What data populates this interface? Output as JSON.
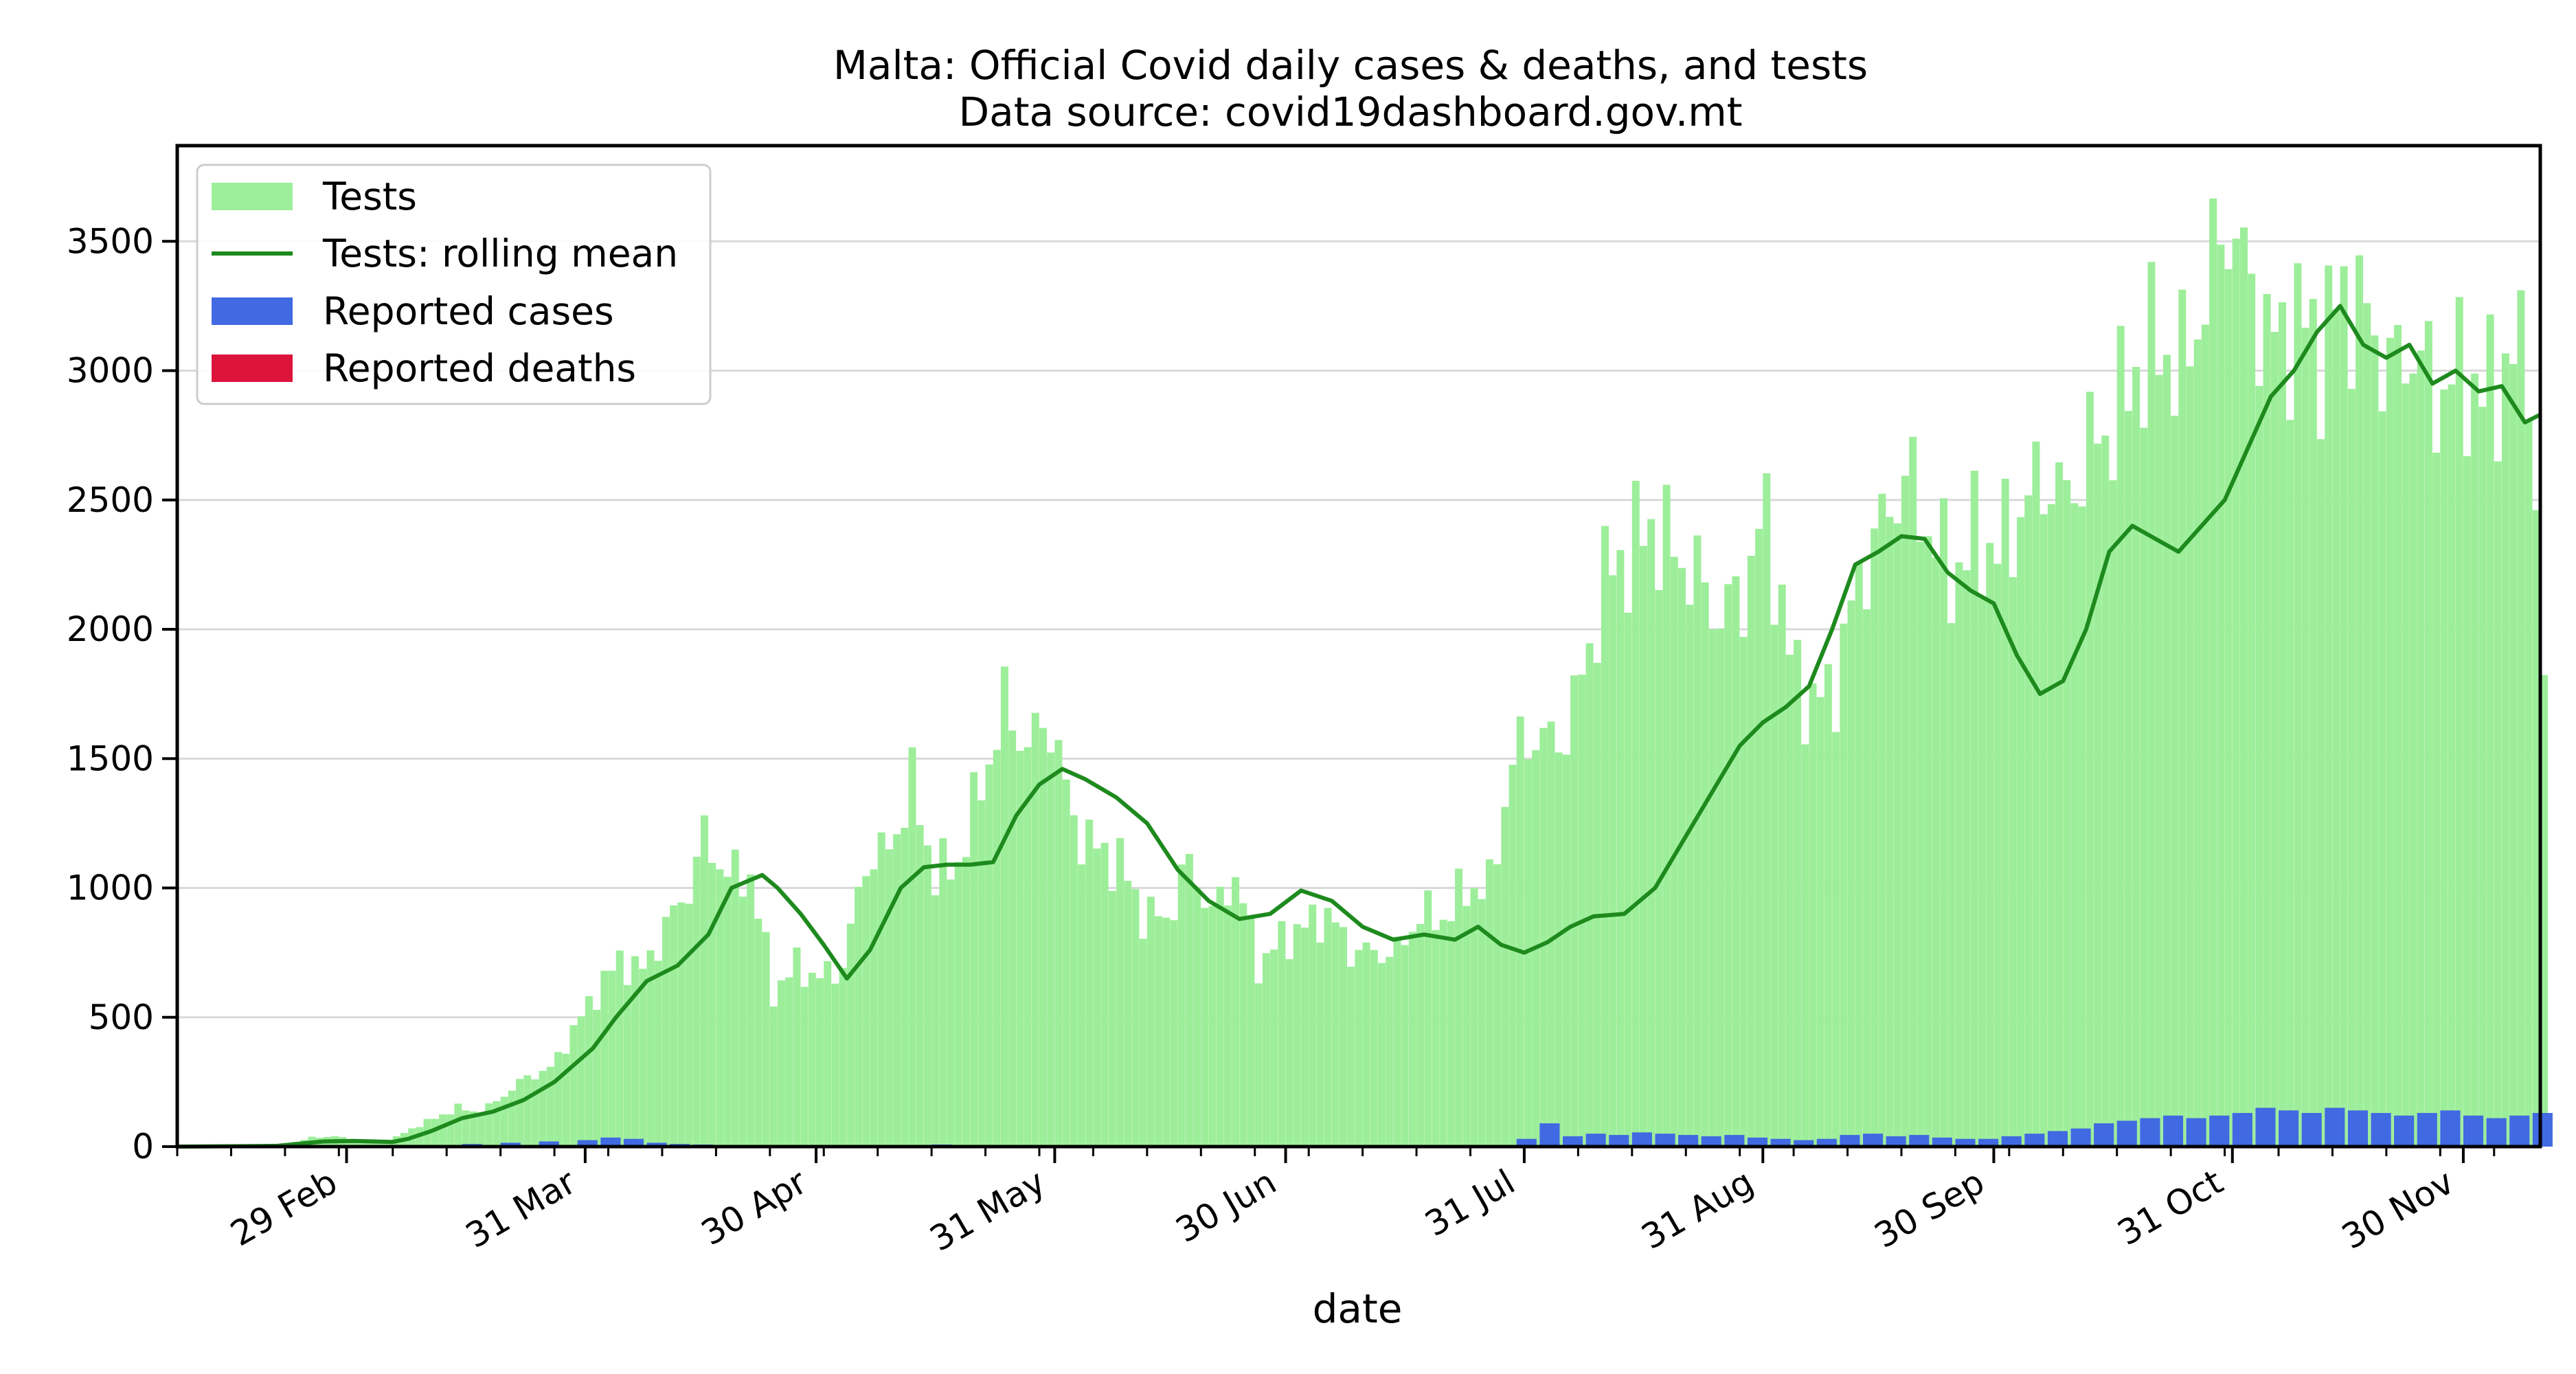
{
  "chart_data": {
    "type": "bar",
    "title": "Malta: Official Covid daily cases & deaths, and tests",
    "subtitle": "Data source: covid19dashboard.gov.mt",
    "xlabel": "date",
    "ylabel": "",
    "x_range": [
      "2020-02-07",
      "2020-12-10"
    ],
    "ylim": [
      0,
      3870
    ],
    "yticks": [
      0,
      500,
      1000,
      1500,
      2000,
      2500,
      3000,
      3500
    ],
    "xticks": [
      {
        "date": "2020-02-29",
        "label": "29 Feb"
      },
      {
        "date": "2020-03-31",
        "label": "31 Mar"
      },
      {
        "date": "2020-04-30",
        "label": "30 Apr"
      },
      {
        "date": "2020-05-31",
        "label": "31 May"
      },
      {
        "date": "2020-06-30",
        "label": "30 Jun"
      },
      {
        "date": "2020-07-31",
        "label": "31 Jul"
      },
      {
        "date": "2020-08-31",
        "label": "31 Aug"
      },
      {
        "date": "2020-09-30",
        "label": "30 Sep"
      },
      {
        "date": "2020-10-31",
        "label": "31 Oct"
      },
      {
        "date": "2020-11-30",
        "label": "30 Nov"
      }
    ],
    "grid": "horizontal",
    "legend_position": "top-left",
    "legend": [
      {
        "label": "Tests",
        "kind": "bar",
        "color": "#9DEE9A"
      },
      {
        "label": "Tests: rolling mean",
        "kind": "line",
        "color": "#1E8A1E"
      },
      {
        "label": "Reported cases",
        "kind": "bar",
        "color": "#4169E1"
      },
      {
        "label": "Reported deaths",
        "kind": "bar",
        "color": "#DC143C"
      }
    ],
    "series": [
      {
        "name": "Tests",
        "kind": "bar",
        "color": "#9DEE9A",
        "values": [
          [
            "2020-02-07",
            5
          ],
          [
            "2020-02-14",
            5
          ],
          [
            "2020-02-21",
            10
          ],
          [
            "2020-02-24",
            35
          ],
          [
            "2020-02-27",
            40
          ],
          [
            "2020-03-01",
            25
          ],
          [
            "2020-03-05",
            20
          ],
          [
            "2020-03-08",
            70
          ],
          [
            "2020-03-11",
            110
          ],
          [
            "2020-03-14",
            150
          ],
          [
            "2020-03-17",
            130
          ],
          [
            "2020-03-20",
            200
          ],
          [
            "2020-03-23",
            270
          ],
          [
            "2020-03-26",
            300
          ],
          [
            "2020-03-29",
            450
          ],
          [
            "2020-04-01",
            600
          ],
          [
            "2020-04-04",
            720
          ],
          [
            "2020-04-07",
            680
          ],
          [
            "2020-04-10",
            850
          ],
          [
            "2020-04-13",
            1000
          ],
          [
            "2020-04-15",
            1200
          ],
          [
            "2020-04-18",
            1050
          ],
          [
            "2020-04-21",
            1050
          ],
          [
            "2020-04-24",
            600
          ],
          [
            "2020-04-27",
            700
          ],
          [
            "2020-04-30",
            650
          ],
          [
            "2020-05-03",
            700
          ],
          [
            "2020-05-06",
            1100
          ],
          [
            "2020-05-09",
            1150
          ],
          [
            "2020-05-12",
            1400
          ],
          [
            "2020-05-15",
            1050
          ],
          [
            "2020-05-18",
            1100
          ],
          [
            "2020-05-21",
            1400
          ],
          [
            "2020-05-24",
            1700
          ],
          [
            "2020-05-27",
            1550
          ],
          [
            "2020-05-30",
            1650
          ],
          [
            "2020-06-02",
            1250
          ],
          [
            "2020-06-05",
            1150
          ],
          [
            "2020-06-08",
            1100
          ],
          [
            "2020-06-11",
            900
          ],
          [
            "2020-06-14",
            880
          ],
          [
            "2020-06-17",
            1100
          ],
          [
            "2020-06-20",
            900
          ],
          [
            "2020-06-23",
            1050
          ],
          [
            "2020-06-26",
            700
          ],
          [
            "2020-06-29",
            800
          ],
          [
            "2020-07-02",
            850
          ],
          [
            "2020-07-05",
            900
          ],
          [
            "2020-07-08",
            760
          ],
          [
            "2020-07-11",
            750
          ],
          [
            "2020-07-14",
            750
          ],
          [
            "2020-07-17",
            900
          ],
          [
            "2020-07-20",
            880
          ],
          [
            "2020-07-23",
            1000
          ],
          [
            "2020-07-26",
            1000
          ],
          [
            "2020-07-29",
            1500
          ],
          [
            "2020-08-01",
            1600
          ],
          [
            "2020-08-04",
            1550
          ],
          [
            "2020-08-07",
            1800
          ],
          [
            "2020-08-10",
            2200
          ],
          [
            "2020-08-13",
            2300
          ],
          [
            "2020-08-16",
            2400
          ],
          [
            "2020-08-19",
            2300
          ],
          [
            "2020-08-22",
            2200
          ],
          [
            "2020-08-25",
            2050
          ],
          [
            "2020-08-28",
            2150
          ],
          [
            "2020-08-31",
            2450
          ],
          [
            "2020-09-03",
            1900
          ],
          [
            "2020-09-06",
            1700
          ],
          [
            "2020-09-09",
            1800
          ],
          [
            "2020-09-12",
            2200
          ],
          [
            "2020-09-15",
            2400
          ],
          [
            "2020-09-18",
            2600
          ],
          [
            "2020-09-21",
            2400
          ],
          [
            "2020-09-24",
            2200
          ],
          [
            "2020-09-27",
            2350
          ],
          [
            "2020-09-30",
            2300
          ],
          [
            "2020-10-03",
            2450
          ],
          [
            "2020-10-06",
            2600
          ],
          [
            "2020-10-09",
            2500
          ],
          [
            "2020-10-12",
            2700
          ],
          [
            "2020-10-15",
            2800
          ],
          [
            "2020-10-18",
            3000
          ],
          [
            "2020-10-21",
            3100
          ],
          [
            "2020-10-24",
            3000
          ],
          [
            "2020-10-27",
            3300
          ],
          [
            "2020-10-30",
            3600
          ],
          [
            "2020-11-02",
            3300
          ],
          [
            "2020-11-05",
            3100
          ],
          [
            "2020-11-08",
            3200
          ],
          [
            "2020-11-11",
            3100
          ],
          [
            "2020-11-14",
            3300
          ],
          [
            "2020-11-17",
            3200
          ],
          [
            "2020-11-20",
            3000
          ],
          [
            "2020-11-23",
            3100
          ],
          [
            "2020-11-26",
            2900
          ],
          [
            "2020-11-29",
            3000
          ],
          [
            "2020-12-02",
            2900
          ],
          [
            "2020-12-05",
            3000
          ],
          [
            "2020-12-08",
            3100
          ],
          [
            "2020-12-10",
            1780
          ]
        ]
      },
      {
        "name": "Tests: rolling mean",
        "kind": "line",
        "color": "#1E8A1E",
        "values": [
          [
            "2020-02-07",
            0
          ],
          [
            "2020-02-20",
            3
          ],
          [
            "2020-02-26",
            20
          ],
          [
            "2020-03-01",
            22
          ],
          [
            "2020-03-06",
            18
          ],
          [
            "2020-03-08",
            30
          ],
          [
            "2020-03-11",
            60
          ],
          [
            "2020-03-15",
            110
          ],
          [
            "2020-03-19",
            135
          ],
          [
            "2020-03-23",
            180
          ],
          [
            "2020-03-27",
            250
          ],
          [
            "2020-04-01",
            380
          ],
          [
            "2020-04-04",
            500
          ],
          [
            "2020-04-08",
            640
          ],
          [
            "2020-04-12",
            700
          ],
          [
            "2020-04-16",
            820
          ],
          [
            "2020-04-19",
            1000
          ],
          [
            "2020-04-23",
            1050
          ],
          [
            "2020-04-25",
            1000
          ],
          [
            "2020-04-28",
            900
          ],
          [
            "2020-05-01",
            780
          ],
          [
            "2020-05-04",
            650
          ],
          [
            "2020-05-07",
            760
          ],
          [
            "2020-05-11",
            1000
          ],
          [
            "2020-05-14",
            1080
          ],
          [
            "2020-05-17",
            1090
          ],
          [
            "2020-05-20",
            1090
          ],
          [
            "2020-05-23",
            1100
          ],
          [
            "2020-05-26",
            1280
          ],
          [
            "2020-05-29",
            1400
          ],
          [
            "2020-06-01",
            1460
          ],
          [
            "2020-06-04",
            1420
          ],
          [
            "2020-06-08",
            1350
          ],
          [
            "2020-06-12",
            1250
          ],
          [
            "2020-06-16",
            1070
          ],
          [
            "2020-06-20",
            950
          ],
          [
            "2020-06-24",
            880
          ],
          [
            "2020-06-28",
            900
          ],
          [
            "2020-07-02",
            990
          ],
          [
            "2020-07-06",
            950
          ],
          [
            "2020-07-10",
            850
          ],
          [
            "2020-07-14",
            800
          ],
          [
            "2020-07-18",
            820
          ],
          [
            "2020-07-22",
            800
          ],
          [
            "2020-07-25",
            850
          ],
          [
            "2020-07-28",
            780
          ],
          [
            "2020-07-31",
            750
          ],
          [
            "2020-08-03",
            790
          ],
          [
            "2020-08-06",
            850
          ],
          [
            "2020-08-09",
            890
          ],
          [
            "2020-08-13",
            900
          ],
          [
            "2020-08-17",
            1000
          ],
          [
            "2020-08-21",
            1200
          ],
          [
            "2020-08-25",
            1400
          ],
          [
            "2020-08-28",
            1550
          ],
          [
            "2020-08-31",
            1640
          ],
          [
            "2020-09-03",
            1700
          ],
          [
            "2020-09-06",
            1780
          ],
          [
            "2020-09-09",
            2000
          ],
          [
            "2020-09-12",
            2250
          ],
          [
            "2020-09-15",
            2300
          ],
          [
            "2020-09-18",
            2360
          ],
          [
            "2020-09-21",
            2350
          ],
          [
            "2020-09-24",
            2220
          ],
          [
            "2020-09-27",
            2150
          ],
          [
            "2020-09-30",
            2100
          ],
          [
            "2020-10-03",
            1900
          ],
          [
            "2020-10-06",
            1750
          ],
          [
            "2020-10-09",
            1800
          ],
          [
            "2020-10-12",
            2000
          ],
          [
            "2020-10-15",
            2300
          ],
          [
            "2020-10-18",
            2400
          ],
          [
            "2020-10-21",
            2350
          ],
          [
            "2020-10-24",
            2300
          ],
          [
            "2020-10-27",
            2400
          ],
          [
            "2020-10-30",
            2500
          ],
          [
            "2020-11-02",
            2700
          ],
          [
            "2020-11-05",
            2900
          ],
          [
            "2020-11-08",
            3000
          ],
          [
            "2020-11-11",
            3150
          ],
          [
            "2020-11-14",
            3250
          ],
          [
            "2020-11-17",
            3100
          ],
          [
            "2020-11-20",
            3050
          ],
          [
            "2020-11-23",
            3100
          ],
          [
            "2020-11-26",
            2950
          ],
          [
            "2020-11-29",
            3000
          ],
          [
            "2020-12-02",
            2920
          ],
          [
            "2020-12-05",
            2940
          ],
          [
            "2020-12-08",
            2800
          ],
          [
            "2020-12-10",
            2830
          ]
        ]
      },
      {
        "name": "Reported cases",
        "kind": "bar",
        "color": "#4169E1",
        "values": [
          [
            "2020-03-15",
            10
          ],
          [
            "2020-03-20",
            15
          ],
          [
            "2020-03-25",
            20
          ],
          [
            "2020-03-30",
            25
          ],
          [
            "2020-04-02",
            35
          ],
          [
            "2020-04-05",
            30
          ],
          [
            "2020-04-08",
            15
          ],
          [
            "2020-04-11",
            10
          ],
          [
            "2020-04-14",
            8
          ],
          [
            "2020-05-15",
            8
          ],
          [
            "2020-06-02",
            5
          ],
          [
            "2020-07-30",
            30
          ],
          [
            "2020-08-02",
            90
          ],
          [
            "2020-08-05",
            40
          ],
          [
            "2020-08-08",
            50
          ],
          [
            "2020-08-11",
            45
          ],
          [
            "2020-08-14",
            55
          ],
          [
            "2020-08-17",
            50
          ],
          [
            "2020-08-20",
            45
          ],
          [
            "2020-08-23",
            40
          ],
          [
            "2020-08-26",
            45
          ],
          [
            "2020-08-29",
            35
          ],
          [
            "2020-09-01",
            30
          ],
          [
            "2020-09-04",
            25
          ],
          [
            "2020-09-07",
            30
          ],
          [
            "2020-09-10",
            45
          ],
          [
            "2020-09-13",
            50
          ],
          [
            "2020-09-16",
            40
          ],
          [
            "2020-09-19",
            45
          ],
          [
            "2020-09-22",
            35
          ],
          [
            "2020-09-25",
            30
          ],
          [
            "2020-09-28",
            30
          ],
          [
            "2020-10-01",
            40
          ],
          [
            "2020-10-04",
            50
          ],
          [
            "2020-10-07",
            60
          ],
          [
            "2020-10-10",
            70
          ],
          [
            "2020-10-13",
            90
          ],
          [
            "2020-10-16",
            100
          ],
          [
            "2020-10-19",
            110
          ],
          [
            "2020-10-22",
            120
          ],
          [
            "2020-10-25",
            110
          ],
          [
            "2020-10-28",
            120
          ],
          [
            "2020-10-31",
            130
          ],
          [
            "2020-11-03",
            150
          ],
          [
            "2020-11-06",
            140
          ],
          [
            "2020-11-09",
            130
          ],
          [
            "2020-11-12",
            150
          ],
          [
            "2020-11-15",
            140
          ],
          [
            "2020-11-18",
            130
          ],
          [
            "2020-11-21",
            120
          ],
          [
            "2020-11-24",
            130
          ],
          [
            "2020-11-27",
            140
          ],
          [
            "2020-11-30",
            120
          ],
          [
            "2020-12-03",
            110
          ],
          [
            "2020-12-06",
            120
          ],
          [
            "2020-12-09",
            130
          ]
        ]
      },
      {
        "name": "Reported deaths",
        "kind": "bar",
        "color": "#DC143C",
        "values": [
          [
            "2020-04-10",
            1
          ],
          [
            "2020-08-20",
            1
          ],
          [
            "2020-09-20",
            2
          ],
          [
            "2020-10-20",
            3
          ],
          [
            "2020-11-05",
            4
          ],
          [
            "2020-11-20",
            5
          ],
          [
            "2020-12-05",
            4
          ]
        ]
      }
    ]
  }
}
